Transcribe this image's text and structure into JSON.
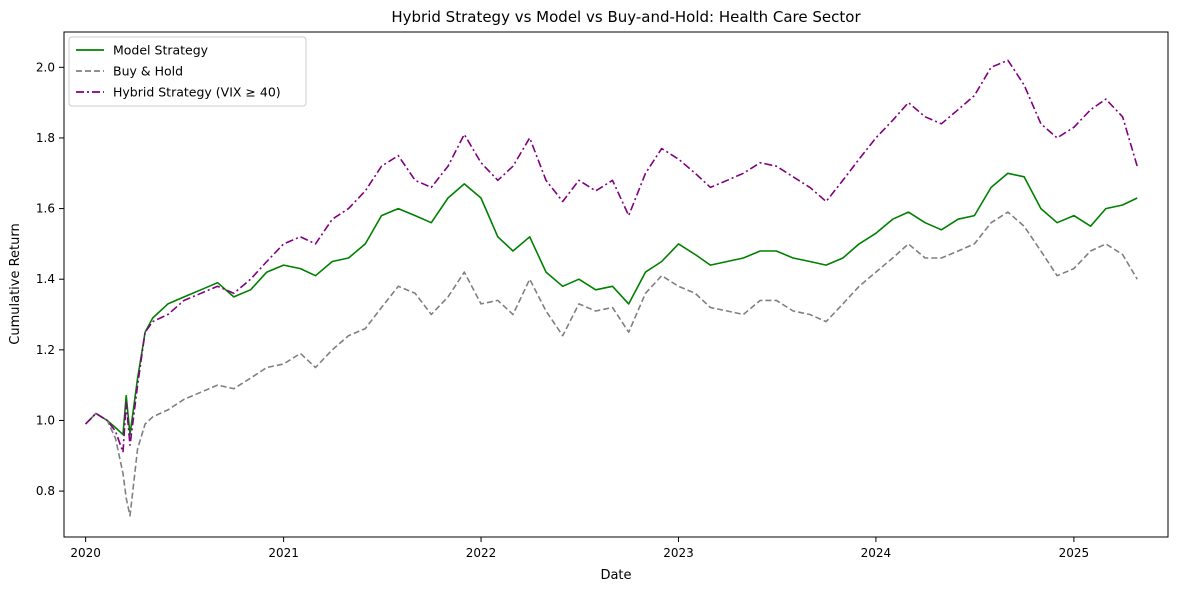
{
  "chart_data": {
    "type": "line",
    "title": "Hybrid Strategy vs Model vs Buy-and-Hold: Health Care Sector",
    "xlabel": "Date",
    "ylabel": "Cumulative Return",
    "xlim": [
      "2019-11-22",
      "2025-06-24"
    ],
    "ylim": [
      0.67,
      2.1
    ],
    "x_ticks": [
      "2020-01-01",
      "2021-01-01",
      "2022-01-01",
      "2023-01-01",
      "2024-01-01",
      "2025-01-01"
    ],
    "x_tick_labels": [
      "2020",
      "2021",
      "2022",
      "2023",
      "2024",
      "2025"
    ],
    "y_ticks": [
      0.8,
      1.0,
      1.2,
      1.4,
      1.6,
      1.8,
      2.0
    ],
    "y_tick_labels": [
      "0.8",
      "1.0",
      "1.2",
      "1.4",
      "1.6",
      "1.8",
      "2.0"
    ],
    "grid": false,
    "legend_position": "top-left",
    "series": [
      {
        "name": "Model Strategy",
        "color": "#008000",
        "style": "solid",
        "x": [
          "2020-01-01",
          "2020-01-20",
          "2020-02-10",
          "2020-02-25",
          "2020-03-10",
          "2020-03-16",
          "2020-03-23",
          "2020-04-06",
          "2020-04-20",
          "2020-05-04",
          "2020-06-01",
          "2020-07-01",
          "2020-08-01",
          "2020-09-01",
          "2020-10-01",
          "2020-11-01",
          "2020-12-01",
          "2021-01-01",
          "2021-02-01",
          "2021-03-01",
          "2021-04-01",
          "2021-05-01",
          "2021-06-01",
          "2021-07-01",
          "2021-08-01",
          "2021-09-01",
          "2021-10-01",
          "2021-11-01",
          "2021-12-01",
          "2022-01-01",
          "2022-02-01",
          "2022-03-01",
          "2022-04-01",
          "2022-05-01",
          "2022-06-01",
          "2022-07-01",
          "2022-08-01",
          "2022-09-01",
          "2022-10-01",
          "2022-11-01",
          "2022-12-01",
          "2023-01-01",
          "2023-02-01",
          "2023-03-01",
          "2023-04-01",
          "2023-05-01",
          "2023-06-01",
          "2023-07-01",
          "2023-08-01",
          "2023-09-01",
          "2023-10-01",
          "2023-11-01",
          "2023-12-01",
          "2024-01-01",
          "2024-02-01",
          "2024-03-01",
          "2024-04-01",
          "2024-05-01",
          "2024-06-01",
          "2024-07-01",
          "2024-08-01",
          "2024-09-01",
          "2024-10-01",
          "2024-11-01",
          "2024-12-01",
          "2025-01-01",
          "2025-02-01",
          "2025-03-01",
          "2025-04-01",
          "2025-04-28"
        ],
        "values": [
          0.99,
          1.02,
          1.0,
          0.98,
          0.96,
          1.07,
          0.96,
          1.12,
          1.25,
          1.29,
          1.33,
          1.35,
          1.37,
          1.39,
          1.35,
          1.37,
          1.42,
          1.44,
          1.43,
          1.41,
          1.45,
          1.46,
          1.5,
          1.58,
          1.6,
          1.58,
          1.56,
          1.63,
          1.67,
          1.63,
          1.52,
          1.48,
          1.52,
          1.42,
          1.38,
          1.4,
          1.37,
          1.38,
          1.33,
          1.42,
          1.45,
          1.5,
          1.47,
          1.44,
          1.45,
          1.46,
          1.48,
          1.48,
          1.46,
          1.45,
          1.44,
          1.46,
          1.5,
          1.53,
          1.57,
          1.59,
          1.56,
          1.54,
          1.57,
          1.58,
          1.66,
          1.7,
          1.69,
          1.6,
          1.56,
          1.58,
          1.55,
          1.6,
          1.61,
          1.63
        ]
      },
      {
        "name": "Buy & Hold",
        "color": "#808080",
        "style": "dashed",
        "x": [
          "2020-01-01",
          "2020-01-20",
          "2020-02-10",
          "2020-02-25",
          "2020-03-10",
          "2020-03-16",
          "2020-03-23",
          "2020-04-06",
          "2020-04-20",
          "2020-05-04",
          "2020-06-01",
          "2020-07-01",
          "2020-08-01",
          "2020-09-01",
          "2020-10-01",
          "2020-11-01",
          "2020-12-01",
          "2021-01-01",
          "2021-02-01",
          "2021-03-01",
          "2021-04-01",
          "2021-05-01",
          "2021-06-01",
          "2021-07-01",
          "2021-08-01",
          "2021-09-01",
          "2021-10-01",
          "2021-11-01",
          "2021-12-01",
          "2022-01-01",
          "2022-02-01",
          "2022-03-01",
          "2022-04-01",
          "2022-05-01",
          "2022-06-01",
          "2022-07-01",
          "2022-08-01",
          "2022-09-01",
          "2022-10-01",
          "2022-11-01",
          "2022-12-01",
          "2023-01-01",
          "2023-02-01",
          "2023-03-01",
          "2023-04-01",
          "2023-05-01",
          "2023-06-01",
          "2023-07-01",
          "2023-08-01",
          "2023-09-01",
          "2023-10-01",
          "2023-11-01",
          "2023-12-01",
          "2024-01-01",
          "2024-02-01",
          "2024-03-01",
          "2024-04-01",
          "2024-05-01",
          "2024-06-01",
          "2024-07-01",
          "2024-08-01",
          "2024-09-01",
          "2024-10-01",
          "2024-11-01",
          "2024-12-01",
          "2025-01-01",
          "2025-02-01",
          "2025-03-01",
          "2025-04-01",
          "2025-04-28"
        ],
        "values": [
          0.99,
          1.02,
          1.0,
          0.95,
          0.85,
          0.78,
          0.73,
          0.92,
          0.99,
          1.01,
          1.03,
          1.06,
          1.08,
          1.1,
          1.09,
          1.12,
          1.15,
          1.16,
          1.19,
          1.15,
          1.2,
          1.24,
          1.26,
          1.32,
          1.38,
          1.36,
          1.3,
          1.35,
          1.42,
          1.33,
          1.34,
          1.3,
          1.4,
          1.31,
          1.24,
          1.33,
          1.31,
          1.32,
          1.25,
          1.36,
          1.41,
          1.38,
          1.36,
          1.32,
          1.31,
          1.3,
          1.34,
          1.34,
          1.31,
          1.3,
          1.28,
          1.33,
          1.38,
          1.42,
          1.46,
          1.5,
          1.46,
          1.46,
          1.48,
          1.5,
          1.56,
          1.59,
          1.55,
          1.48,
          1.41,
          1.43,
          1.48,
          1.5,
          1.47,
          1.4
        ]
      },
      {
        "name": "Hybrid Strategy (VIX ≥ 40)",
        "color": "#800080",
        "style": "dashdot",
        "x": [
          "2020-01-01",
          "2020-01-20",
          "2020-02-10",
          "2020-02-25",
          "2020-03-10",
          "2020-03-16",
          "2020-03-23",
          "2020-04-06",
          "2020-04-20",
          "2020-05-04",
          "2020-06-01",
          "2020-07-01",
          "2020-08-01",
          "2020-09-01",
          "2020-10-01",
          "2020-11-01",
          "2020-12-01",
          "2021-01-01",
          "2021-02-01",
          "2021-03-01",
          "2021-04-01",
          "2021-05-01",
          "2021-06-01",
          "2021-07-01",
          "2021-08-01",
          "2021-09-01",
          "2021-10-01",
          "2021-11-01",
          "2021-12-01",
          "2022-01-01",
          "2022-02-01",
          "2022-03-01",
          "2022-04-01",
          "2022-05-01",
          "2022-06-01",
          "2022-07-01",
          "2022-08-01",
          "2022-09-01",
          "2022-10-01",
          "2022-11-01",
          "2022-12-01",
          "2023-01-01",
          "2023-02-01",
          "2023-03-01",
          "2023-04-01",
          "2023-05-01",
          "2023-06-01",
          "2023-07-01",
          "2023-08-01",
          "2023-09-01",
          "2023-10-01",
          "2023-11-01",
          "2023-12-01",
          "2024-01-01",
          "2024-02-01",
          "2024-03-01",
          "2024-04-01",
          "2024-05-01",
          "2024-06-01",
          "2024-07-01",
          "2024-08-01",
          "2024-09-01",
          "2024-10-01",
          "2024-11-01",
          "2024-12-01",
          "2025-01-01",
          "2025-02-01",
          "2025-03-01",
          "2025-04-01",
          "2025-04-28"
        ],
        "values": [
          0.99,
          1.02,
          1.0,
          0.97,
          0.91,
          1.05,
          0.93,
          1.1,
          1.25,
          1.28,
          1.3,
          1.34,
          1.36,
          1.38,
          1.36,
          1.4,
          1.45,
          1.5,
          1.52,
          1.5,
          1.57,
          1.6,
          1.65,
          1.72,
          1.75,
          1.68,
          1.66,
          1.72,
          1.81,
          1.73,
          1.68,
          1.72,
          1.8,
          1.68,
          1.62,
          1.68,
          1.65,
          1.68,
          1.58,
          1.7,
          1.77,
          1.74,
          1.7,
          1.66,
          1.68,
          1.7,
          1.73,
          1.72,
          1.69,
          1.66,
          1.62,
          1.68,
          1.74,
          1.8,
          1.85,
          1.9,
          1.86,
          1.84,
          1.88,
          1.92,
          2.0,
          2.02,
          1.95,
          1.84,
          1.8,
          1.83,
          1.88,
          1.91,
          1.86,
          1.72
        ]
      }
    ]
  }
}
